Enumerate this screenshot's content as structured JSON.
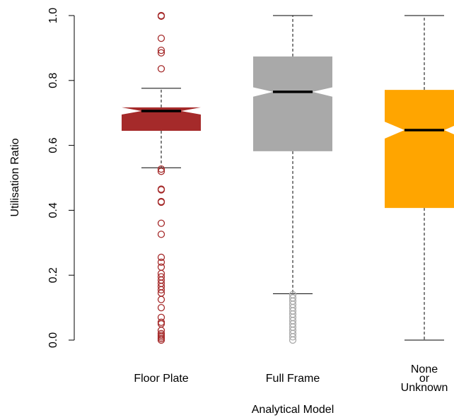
{
  "chart_data": {
    "type": "boxplot",
    "x_label": "Analytical Model",
    "y_label": "Utilisation Ratio",
    "categories": [
      "Floor Plate",
      "Full Frame",
      "None\nor\nUnknown"
    ],
    "colors": [
      "#a52a2a",
      "#a9a9a9",
      "#ffa500"
    ],
    "ylim": [
      0,
      1
    ],
    "yticks": [
      {
        "value": 0,
        "label": "0.0"
      },
      0.2,
      0.4,
      0.6,
      0.8,
      {
        "value": 1,
        "label": "1.0"
      }
    ],
    "boxes": [
      {
        "whislo": 0.531,
        "q1": 0.645,
        "med": 0.706,
        "q3": 0.717,
        "whishi": 0.776,
        "notch": [
          0.695,
          0.717
        ],
        "outliers": [
          1.0,
          0.998,
          0.93,
          0.893,
          0.885,
          0.836,
          0.527,
          0.52,
          0.465,
          0.463,
          0.427,
          0.425,
          0.36,
          0.326,
          0.255,
          0.24,
          0.225,
          0.205,
          0.195,
          0.185,
          0.175,
          0.165,
          0.155,
          0.145,
          0.125,
          0.1,
          0.07,
          0.055,
          0.05,
          0.03,
          0.02,
          0.015,
          0.01,
          0.005,
          0.0
        ]
      },
      {
        "whislo": 0.143,
        "q1": 0.582,
        "med": 0.765,
        "q3": 0.874,
        "whishi": 1.0,
        "notch": [
          0.75,
          0.779
        ],
        "outliers": [
          0.14,
          0.13,
          0.12,
          0.11,
          0.1,
          0.09,
          0.08,
          0.07,
          0.06,
          0.05,
          0.04,
          0.03,
          0.02,
          0.01,
          0.0
        ]
      },
      {
        "whislo": 0.0,
        "q1": 0.407,
        "med": 0.647,
        "q3": 0.771,
        "whishi": 1.0,
        "notch": [
          0.621,
          0.673
        ],
        "outliers": []
      }
    ]
  }
}
